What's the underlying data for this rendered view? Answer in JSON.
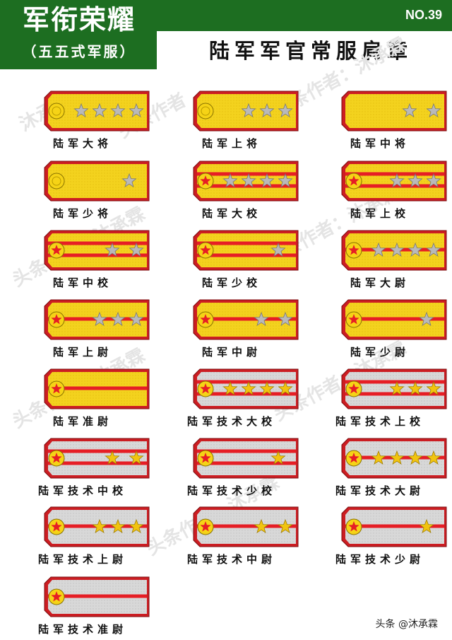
{
  "header": {
    "main_title": "军衔荣耀",
    "sub_title": "（五五式军服）",
    "issue_no": "NO.39",
    "title": "陆军军官常服肩章"
  },
  "watermarks": [
    "沐承霖",
    "头条作者",
    "头条作者：沐承霖",
    "头条作者：沐承霖",
    "头条作者：沐承霖",
    "头条作者：沐承霖",
    "头条作者：沐承霖",
    "头条作者：沐承霖"
  ],
  "footer": {
    "credit": "头条 @沐承霖"
  },
  "colors": {
    "green": "#1d6e21",
    "border_red": "#cc1d22",
    "gold": "#f3d21e",
    "silver": "#d8d8d8",
    "stripe_red": "#e61e25",
    "star_silver": "#b9b9b9",
    "star_gold": "#f1c40f"
  },
  "boards": [
    {
      "label": "陆军大将",
      "field": "gold",
      "stripes": 0,
      "stars": 4,
      "star": "silver",
      "emblem": "button"
    },
    {
      "label": "陆军上将",
      "field": "gold",
      "stripes": 0,
      "stars": 3,
      "star": "silver",
      "emblem": "button"
    },
    {
      "label": "陆军中将",
      "field": "gold",
      "stripes": 0,
      "stars": 2,
      "star": "silver",
      "emblem": "none"
    },
    {
      "label": "陆军少将",
      "field": "gold",
      "stripes": 0,
      "stars": 1,
      "star": "silver",
      "emblem": "button"
    },
    {
      "label": "陆军大校",
      "field": "gold",
      "stripes": 2,
      "stars": 4,
      "star": "silver",
      "emblem": "star"
    },
    {
      "label": "陆军上校",
      "field": "gold",
      "stripes": 2,
      "stars": 3,
      "star": "silver",
      "emblem": "star"
    },
    {
      "label": "陆军中校",
      "field": "gold",
      "stripes": 2,
      "stars": 2,
      "star": "silver",
      "emblem": "star"
    },
    {
      "label": "陆军少校",
      "field": "gold",
      "stripes": 2,
      "stars": 1,
      "star": "silver",
      "emblem": "star"
    },
    {
      "label": "陆军大尉",
      "field": "gold",
      "stripes": 1,
      "stars": 4,
      "star": "silver",
      "emblem": "star"
    },
    {
      "label": "陆军上尉",
      "field": "gold",
      "stripes": 1,
      "stars": 3,
      "star": "silver",
      "emblem": "star"
    },
    {
      "label": "陆军中尉",
      "field": "gold",
      "stripes": 1,
      "stars": 2,
      "star": "silver",
      "emblem": "star"
    },
    {
      "label": "陆军少尉",
      "field": "gold",
      "stripes": 1,
      "stars": 1,
      "star": "silver",
      "emblem": "star"
    },
    {
      "label": "陆军准尉",
      "field": "gold",
      "stripes": 1,
      "stars": 0,
      "star": "silver",
      "emblem": "star"
    },
    {
      "label": "陆军技术大校",
      "field": "silver",
      "stripes": 2,
      "stars": 4,
      "star": "gold",
      "emblem": "star"
    },
    {
      "label": "陆军技术上校",
      "field": "silver",
      "stripes": 2,
      "stars": 3,
      "star": "gold",
      "emblem": "star"
    },
    {
      "label": "陆军技术中校",
      "field": "silver",
      "stripes": 2,
      "stars": 2,
      "star": "gold",
      "emblem": "star"
    },
    {
      "label": "陆军技术少校",
      "field": "silver",
      "stripes": 2,
      "stars": 1,
      "star": "gold",
      "emblem": "star"
    },
    {
      "label": "陆军技术大尉",
      "field": "silver",
      "stripes": 1,
      "stars": 4,
      "star": "gold",
      "emblem": "star"
    },
    {
      "label": "陆军技术上尉",
      "field": "silver",
      "stripes": 1,
      "stars": 3,
      "star": "gold",
      "emblem": "star"
    },
    {
      "label": "陆军技术中尉",
      "field": "silver",
      "stripes": 1,
      "stars": 2,
      "star": "gold",
      "emblem": "star"
    },
    {
      "label": "陆军技术少尉",
      "field": "silver",
      "stripes": 1,
      "stars": 1,
      "star": "gold",
      "emblem": "star"
    },
    {
      "label": "陆军技术准尉",
      "field": "silver",
      "stripes": 1,
      "stars": 0,
      "star": "gold",
      "emblem": "star"
    }
  ]
}
